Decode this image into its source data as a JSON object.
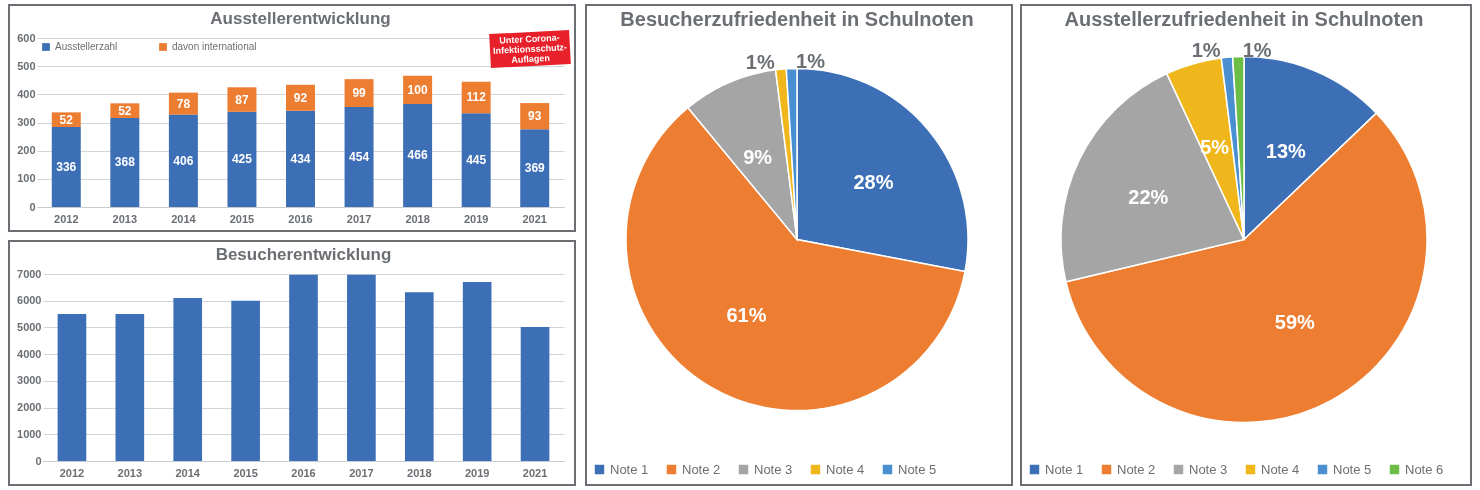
{
  "chart_data": [
    {
      "type": "bar",
      "title": "Ausstellerentwicklung",
      "categories": [
        "2012",
        "2013",
        "2014",
        "2015",
        "2016",
        "2017",
        "2018",
        "2019",
        "2021"
      ],
      "stacked": true,
      "ylim": [
        0,
        600
      ],
      "yticks": [
        0,
        100,
        200,
        300,
        400,
        500,
        600
      ],
      "grid": "y",
      "legend": "top left",
      "series": [
        {
          "name": "Ausstellerzahl",
          "color": "#3d6fb6",
          "values": [
            284,
            316,
            328,
            338,
            342,
            355,
            366,
            333,
            276
          ]
        },
        {
          "name": "davon international",
          "color": "#ed7d31",
          "values": [
            52,
            52,
            78,
            87,
            92,
            99,
            100,
            112,
            93
          ],
          "value_labels": [
            "52",
            "52",
            "78",
            "87",
            "92",
            "99",
            "100",
            "112",
            "93"
          ]
        }
      ],
      "totals": [
        "336",
        "368",
        "406",
        "425",
        "434",
        "454",
        "466",
        "445",
        "369"
      ],
      "annotations": [
        "Unter Corona-Infektionsschutz-Auflagen"
      ]
    },
    {
      "type": "bar",
      "title": "Besucherentwicklung",
      "categories": [
        "2012",
        "2013",
        "2014",
        "2015",
        "2016",
        "2017",
        "2018",
        "2019",
        "2021"
      ],
      "ylim": [
        0,
        7000
      ],
      "yticks": [
        0,
        1000,
        2000,
        3000,
        4000,
        5000,
        6000,
        7000
      ],
      "grid": "y",
      "series": [
        {
          "color": "#3d6fb6",
          "values": [
            5500,
            5500,
            6100,
            6000,
            6970,
            6970,
            6320,
            6700,
            5020
          ]
        }
      ]
    },
    {
      "type": "pie",
      "title": "Besucherzufriedenheit in Schulnoten",
      "categories": [
        "Note 1",
        "Note 2",
        "Note 3",
        "Note 4",
        "Note 5"
      ],
      "values": [
        28,
        61,
        9,
        1,
        1
      ],
      "value_labels": [
        "28%",
        "61%",
        "9%",
        "1%",
        "1%"
      ],
      "colors": [
        "#3d6fb6",
        "#ed7d31",
        "#a5a5a5",
        "#f0b71c",
        "#4a90d0"
      ],
      "legend": "bottom"
    },
    {
      "type": "pie",
      "title": "Ausstellerzufriedenheit in Schulnoten",
      "categories": [
        "Note 1",
        "Note 2",
        "Note 3",
        "Note 4",
        "Note 5",
        "Note 6"
      ],
      "values": [
        13,
        59,
        22,
        5,
        1,
        1
      ],
      "value_labels": [
        "13%",
        "59%",
        "22%",
        "5%",
        "1%",
        "1%"
      ],
      "colors": [
        "#3d6fb6",
        "#ed7d31",
        "#a5a5a5",
        "#f0b71c",
        "#4a90d0",
        "#6cbd45"
      ],
      "legend": "bottom"
    }
  ]
}
